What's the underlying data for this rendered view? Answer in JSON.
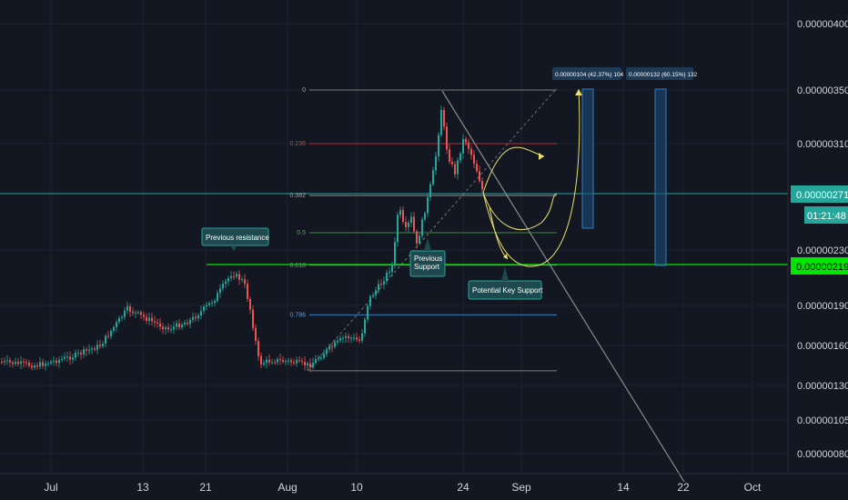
{
  "chart_data": {
    "type": "candlestick",
    "x_ticks": [
      "Jul",
      "13",
      "21",
      "Aug",
      "10",
      "24",
      "Sep",
      "14",
      "22",
      "Oct"
    ],
    "y_ticks": [
      "0.00000400",
      "0.00000350",
      "0.00000310",
      "0.00000230",
      "0.00000190",
      "0.00000160",
      "0.00000130",
      "0.00000105",
      "0.00000080"
    ],
    "price_labels": [
      {
        "name": "current-price",
        "value": "0.00000271",
        "color": "#26a69a"
      },
      {
        "name": "countdown",
        "value": "01:21:48",
        "color": "#26a69a"
      },
      {
        "name": "support-price",
        "value": "0.00000219",
        "color": "#00e600"
      }
    ],
    "fib_levels": [
      {
        "label": "0",
        "price": 3.5e-06,
        "color": "#9e9e9e"
      },
      {
        "label": "0.236",
        "price": 3.1e-06,
        "color": "#e53935"
      },
      {
        "label": "0.382",
        "price": 2.71e-06,
        "color": "#9e9e9e"
      },
      {
        "label": "0.5",
        "price": 2.43e-06,
        "color": "#4caf50"
      },
      {
        "label": "0.618",
        "price": 2.19e-06,
        "color": "#4caf50"
      },
      {
        "label": "0.786",
        "price": 1.83e-06,
        "color": "#42a5f5"
      },
      {
        "label": "",
        "price": 1.41e-06,
        "color": "#9e9e9e"
      }
    ],
    "annotations": [
      "Previous resistance",
      "Previous Support",
      "Potential Key Support"
    ],
    "measures": [
      "0.00000104 (42.37%) 104",
      "0.00000132 (60.15%) 132"
    ],
    "colors": {
      "up": "#26a69a",
      "down": "#ef5350",
      "background": "#131722",
      "projection": "#e8e06b"
    }
  }
}
